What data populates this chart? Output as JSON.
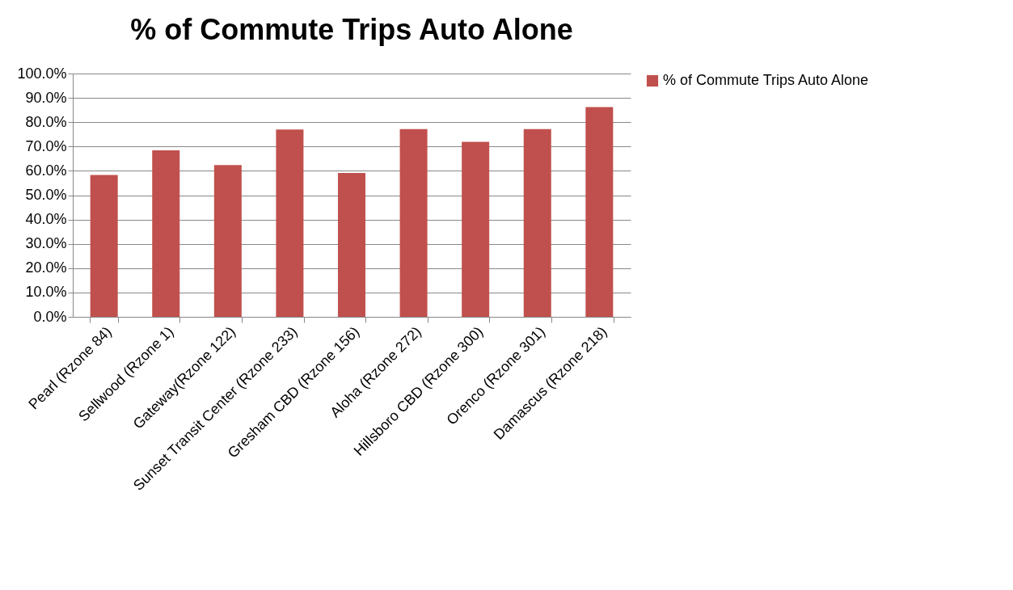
{
  "chart_data": {
    "type": "bar",
    "title": "% of Commute Trips Auto Alone",
    "categories": [
      "Pearl (Rzone 84)",
      "Sellwood (Rzone 1)",
      "Gateway(Rzone 122)",
      "Sunset Transit Center (Rzone 233)",
      "Gresham CBD (Rzone 156)",
      "Aloha (Rzone 272)",
      "Hillsboro CBD (Rzone 300)",
      "Orenco (Rzone 301)",
      "Damascus (Rzone 218)"
    ],
    "series": [
      {
        "name": "% of Commute Trips Auto Alone",
        "color": "#c0504d",
        "values": [
          58.3,
          68.4,
          62.4,
          77.0,
          59.1,
          77.2,
          71.9,
          77.2,
          86.2
        ]
      }
    ],
    "ylim": [
      0,
      100
    ],
    "yticks": [
      {
        "value": 0,
        "label": "0.0%"
      },
      {
        "value": 10,
        "label": "10.0%"
      },
      {
        "value": 20,
        "label": "20.0%"
      },
      {
        "value": 30,
        "label": "30.0%"
      },
      {
        "value": 40,
        "label": "40.0%"
      },
      {
        "value": 50,
        "label": "50.0%"
      },
      {
        "value": 60,
        "label": "60.0%"
      },
      {
        "value": 70,
        "label": "70.0%"
      },
      {
        "value": 80,
        "label": "80.0%"
      },
      {
        "value": 90,
        "label": "90.0%"
      },
      {
        "value": 100,
        "label": "100.0%"
      }
    ],
    "grid": "y",
    "legend": "right"
  }
}
